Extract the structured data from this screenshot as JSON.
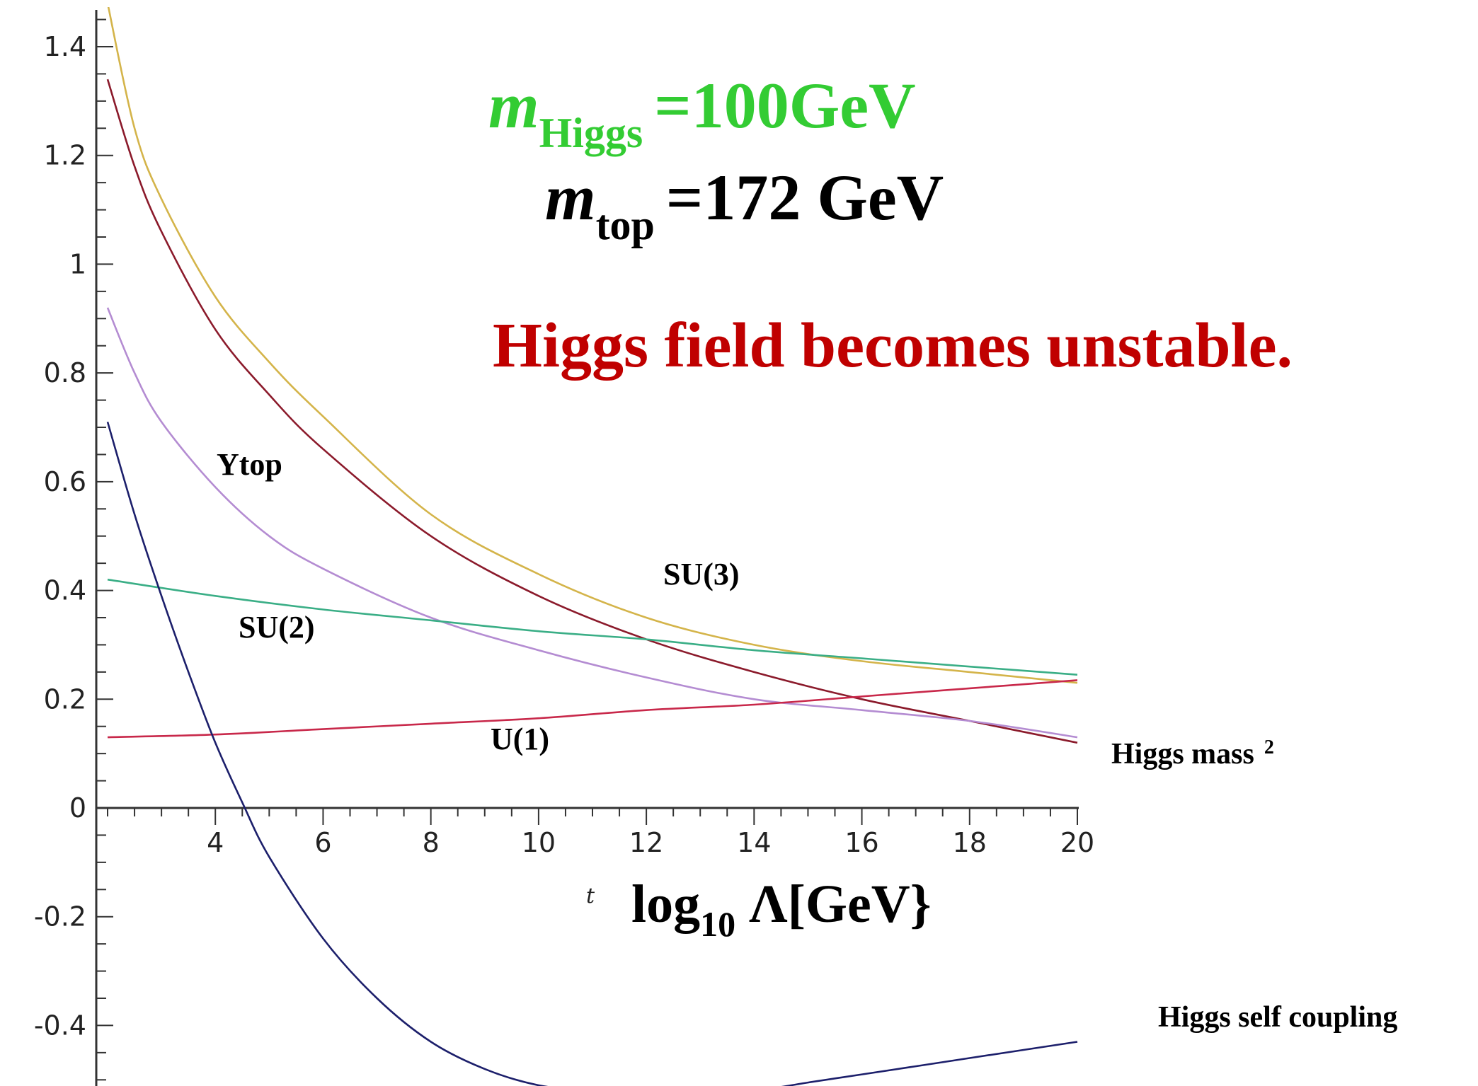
{
  "annotations": {
    "m_higgs_symbol": "m",
    "m_higgs_sub": "Higgs",
    "m_higgs_value": "=100GeV",
    "m_top_symbol": "m",
    "m_top_sub": "top",
    "m_top_value": "=172 GeV",
    "headline": "Higgs field becomes unstable."
  },
  "colors": {
    "higgs_mass_text": "#33cc33",
    "top_mass_text": "#000000",
    "headline_text": "#c00000",
    "axis": "#333333"
  },
  "chart_data": {
    "type": "line",
    "xlabel_t": "t",
    "xlabel_base": "log",
    "xlabel_sub": "10",
    "xlabel_rest": " Λ[GeV}",
    "xlim": [
      2,
      20
    ],
    "ylim": [
      -0.5,
      1.47
    ],
    "x_ticks": [
      4,
      6,
      8,
      10,
      12,
      14,
      16,
      18,
      20
    ],
    "y_ticks": [
      -0.4,
      -0.2,
      0,
      0.2,
      0.4,
      0.6,
      0.8,
      1,
      1.2,
      1.4
    ],
    "y_tick_labels": [
      "-0.4",
      "-0.2",
      "0",
      "0.2",
      "0.4",
      "0.6",
      "0.8",
      "1",
      "1.2",
      "1.4"
    ],
    "series": [
      {
        "name": "SU(3)",
        "color": "#d4b44a",
        "x": [
          2,
          2.5,
          3,
          4,
          5,
          6,
          8,
          10,
          12,
          14,
          16,
          18,
          20
        ],
        "y": [
          1.48,
          1.25,
          1.12,
          0.94,
          0.82,
          0.72,
          0.54,
          0.43,
          0.35,
          0.3,
          0.27,
          0.25,
          0.23
        ]
      },
      {
        "name": "Higgs mass 2",
        "color": "#8b1a2b",
        "x": [
          2,
          2.5,
          3,
          4,
          5,
          6,
          8,
          10,
          12,
          14,
          16,
          18,
          20
        ],
        "y": [
          1.34,
          1.18,
          1.06,
          0.88,
          0.76,
          0.66,
          0.5,
          0.39,
          0.31,
          0.25,
          0.2,
          0.16,
          0.12
        ]
      },
      {
        "name": "Ytop",
        "color": "#b48cd2",
        "x": [
          2,
          2.5,
          3,
          4,
          5,
          6,
          8,
          10,
          12,
          14,
          16,
          18,
          20
        ],
        "y": [
          0.92,
          0.8,
          0.71,
          0.59,
          0.5,
          0.44,
          0.35,
          0.29,
          0.24,
          0.2,
          0.18,
          0.16,
          0.13
        ]
      },
      {
        "name": "SU(2)",
        "color": "#3aae86",
        "x": [
          2,
          4,
          6,
          8,
          10,
          12,
          14,
          16,
          18,
          20
        ],
        "y": [
          0.42,
          0.39,
          0.365,
          0.345,
          0.325,
          0.31,
          0.29,
          0.275,
          0.26,
          0.245
        ]
      },
      {
        "name": "U(1)",
        "color": "#c8284a",
        "x": [
          2,
          4,
          6,
          8,
          10,
          12,
          14,
          16,
          18,
          20
        ],
        "y": [
          0.13,
          0.135,
          0.145,
          0.155,
          0.165,
          0.18,
          0.19,
          0.205,
          0.22,
          0.235
        ]
      },
      {
        "name": "Higgs self coupling",
        "color": "#1c1f6b",
        "x": [
          2,
          2.5,
          3,
          3.5,
          4,
          4.5,
          5,
          6,
          7,
          8,
          9,
          10,
          11,
          12,
          13,
          14,
          15,
          16,
          17,
          18,
          19,
          20
        ],
        "y": [
          0.71,
          0.54,
          0.39,
          0.25,
          0.12,
          0.01,
          -0.09,
          -0.24,
          -0.35,
          -0.43,
          -0.48,
          -0.51,
          -0.52,
          -0.525,
          -0.525,
          -0.52,
          -0.505,
          -0.49,
          -0.475,
          -0.46,
          -0.445,
          -0.43
        ]
      }
    ],
    "labels": [
      {
        "key": "ytop",
        "text": "Ytop"
      },
      {
        "key": "su3",
        "text": "SU(3)"
      },
      {
        "key": "su2",
        "text": "SU(2)"
      },
      {
        "key": "u1",
        "text": "U(1)"
      },
      {
        "key": "higgs_mass",
        "text": "Higgs mass",
        "sup": "2"
      },
      {
        "key": "self_coupling",
        "text": "Higgs self coupling"
      }
    ]
  }
}
